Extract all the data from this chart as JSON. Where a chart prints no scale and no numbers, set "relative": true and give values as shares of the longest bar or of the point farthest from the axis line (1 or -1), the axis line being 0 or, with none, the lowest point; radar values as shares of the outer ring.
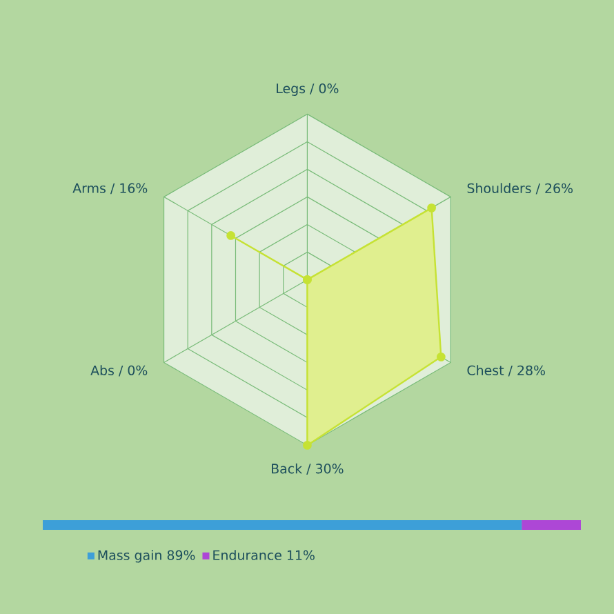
{
  "chart_data": [
    {
      "type": "radar",
      "relative": true,
      "grid": true,
      "marker": "circle",
      "categories": [
        "Legs / 0%",
        "Shoulders / 26%",
        "Chest / 28%",
        "Back / 30%",
        "Abs / 0%",
        "Arms / 16%"
      ],
      "series": [
        {
          "color": "#c6e234",
          "values": [
            0,
            0.867,
            0.933,
            1,
            0,
            0.533
          ]
        }
      ]
    },
    {
      "type": "bar",
      "orientation": "horizontal",
      "stacked": true,
      "categories": [
        null
      ],
      "relative": true,
      "legend": "bottom left",
      "series": [
        {
          "name": "Mass gain 89%",
          "color": "#3d9fd8",
          "values": [
            0.89
          ]
        },
        {
          "name": "Endurance 11%",
          "color": "#ad47d6",
          "values": [
            0.11
          ]
        }
      ]
    }
  ]
}
